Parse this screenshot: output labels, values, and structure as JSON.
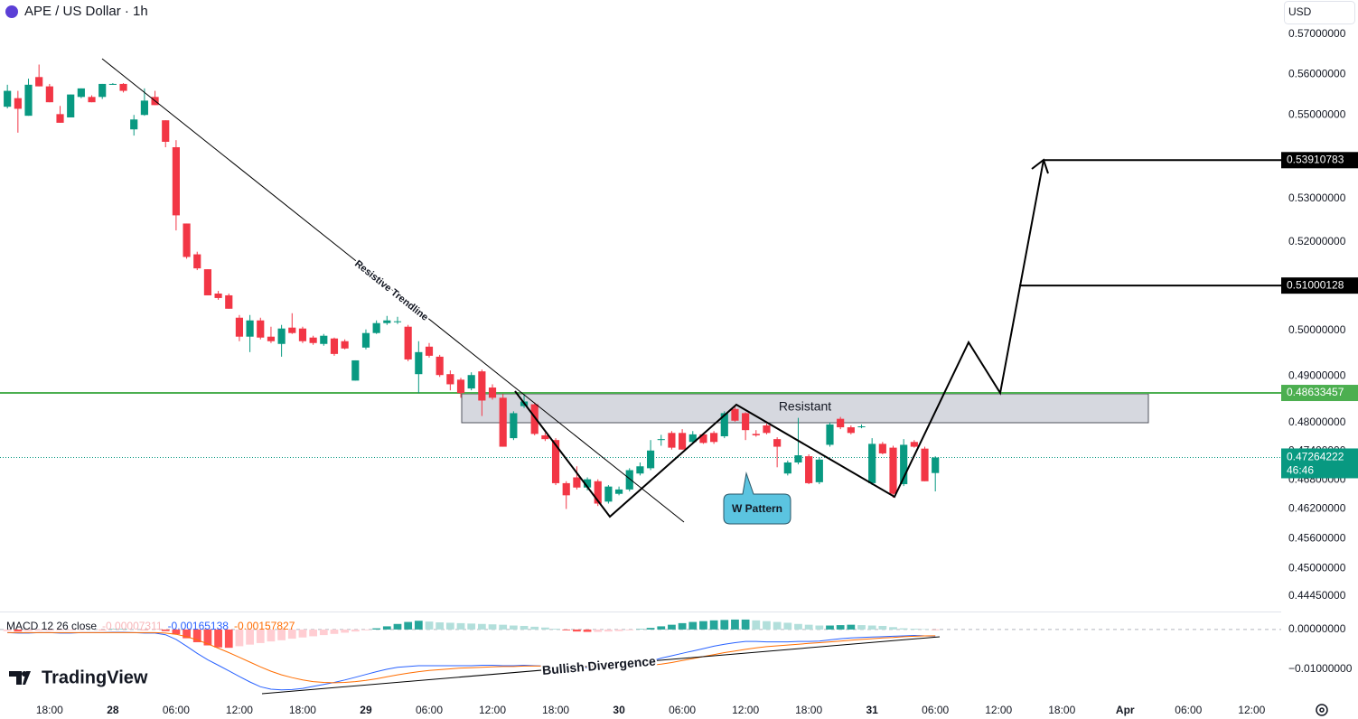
{
  "header": {
    "title": "APE / US Dollar · 1h",
    "currency": "USD",
    "brand": "TradingView"
  },
  "chart_data": [
    {
      "type": "candlestick",
      "log_scale": true,
      "grid": false,
      "up_color": "#089981",
      "down_color": "#f23645",
      "x": [
        -4,
        -3,
        -2,
        -1,
        0,
        1,
        2,
        3,
        4,
        5,
        6,
        7,
        8,
        9,
        10,
        11,
        12,
        13,
        14,
        15,
        16,
        17,
        18,
        19,
        20,
        21,
        22,
        23,
        24,
        25,
        26,
        27,
        28,
        29,
        30,
        31,
        32,
        33,
        34,
        35,
        36,
        37,
        38,
        39,
        40,
        41,
        42,
        43,
        44,
        45,
        46,
        47,
        48,
        49,
        50,
        51,
        52,
        53,
        54,
        55,
        56,
        57,
        58,
        59,
        60,
        61,
        62,
        63,
        64,
        65,
        66,
        67,
        68,
        69,
        70,
        71,
        72,
        73,
        74,
        75,
        76,
        77,
        78,
        79,
        80,
        81,
        82,
        83,
        84
      ],
      "ohlc": [
        [
          0.552,
          0.5574,
          0.5516,
          0.5559
        ],
        [
          0.5541,
          0.5559,
          0.5457,
          0.5515
        ],
        [
          0.5498,
          0.5589,
          0.5498,
          0.5574
        ],
        [
          0.5593,
          0.5624,
          0.557,
          0.557
        ],
        [
          0.557,
          0.5576,
          0.5531,
          0.5531
        ],
        [
          0.5502,
          0.5522,
          0.5481,
          0.5481
        ],
        [
          0.5494,
          0.555,
          0.5494,
          0.555
        ],
        [
          0.5544,
          0.5565,
          0.5541,
          0.5565
        ],
        [
          0.5544,
          0.5548,
          0.5531,
          0.5531
        ],
        [
          0.5544,
          0.5576,
          0.5539,
          0.5576
        ],
        [
          0.5576,
          0.5578,
          0.5574,
          0.5576
        ],
        [
          0.5576,
          0.5578,
          0.5555,
          0.5559
        ],
        [
          0.5465,
          0.55,
          0.545,
          0.5489
        ],
        [
          0.55,
          0.5565,
          0.5498,
          0.5535
        ],
        [
          0.5544,
          0.5559,
          0.5524,
          0.5524
        ],
        [
          0.5487,
          0.5487,
          0.5422,
          0.5435
        ],
        [
          0.5422,
          0.5439,
          0.5226,
          0.5261
        ],
        [
          0.5242,
          0.5242,
          0.5161,
          0.5165
        ],
        [
          0.5171,
          0.5177,
          0.5135,
          0.5139
        ],
        [
          0.5137,
          0.5137,
          0.5078,
          0.5078
        ],
        [
          0.5082,
          0.5088,
          0.5068,
          0.5072
        ],
        [
          0.5078,
          0.5082,
          0.5048,
          0.5048
        ],
        [
          0.5028,
          0.5034,
          0.4976,
          0.4986
        ],
        [
          0.4986,
          0.5034,
          0.4952,
          0.5022
        ],
        [
          0.5022,
          0.5028,
          0.498,
          0.4984
        ],
        [
          0.4986,
          0.5008,
          0.4972,
          0.4976
        ],
        [
          0.497,
          0.5012,
          0.4942,
          0.5004
        ],
        [
          0.5006,
          0.5038,
          0.4992,
          0.4994
        ],
        [
          0.5004,
          0.5008,
          0.4972,
          0.4976
        ],
        [
          0.4984,
          0.4988,
          0.4968,
          0.4972
        ],
        [
          0.497,
          0.4992,
          0.4966,
          0.4988
        ],
        [
          0.4982,
          0.4984,
          0.4944,
          0.4948
        ],
        [
          0.4976,
          0.498,
          0.4958,
          0.496
        ],
        [
          0.489,
          0.4934,
          0.489,
          0.4934
        ],
        [
          0.4962,
          0.5002,
          0.4958,
          0.4994
        ],
        [
          0.4994,
          0.5022,
          0.4992,
          0.5016
        ],
        [
          0.5016,
          0.5032,
          0.5012,
          0.5022
        ],
        [
          0.502,
          0.503,
          0.5014,
          0.502
        ],
        [
          0.5008,
          0.5012,
          0.4932,
          0.4936
        ],
        [
          0.4904,
          0.4976,
          0.4863,
          0.4952
        ],
        [
          0.4964,
          0.4972,
          0.494,
          0.4944
        ],
        [
          0.4942,
          0.4946,
          0.4898,
          0.4902
        ],
        [
          0.4904,
          0.4912,
          0.4869,
          0.4882
        ],
        [
          0.4892,
          0.4896,
          0.4853,
          0.4863
        ],
        [
          0.4873,
          0.4908,
          0.4869,
          0.4902
        ],
        [
          0.491,
          0.4914,
          0.4814,
          0.4847
        ],
        [
          0.4875,
          0.4882,
          0.4849,
          0.4853
        ],
        [
          0.4853,
          0.4861,
          0.4749,
          0.4749
        ],
        [
          0.4767,
          0.4824,
          0.4763,
          0.482
        ],
        [
          0.4835,
          0.4859,
          0.4831,
          0.4845
        ],
        [
          0.4839,
          0.4843,
          0.4773,
          0.4776
        ],
        [
          0.4773,
          0.4778,
          0.4761,
          0.4765
        ],
        [
          0.4763,
          0.4767,
          0.4669,
          0.4673
        ],
        [
          0.4673,
          0.4677,
          0.462,
          0.4648
        ],
        [
          0.4685,
          0.4708,
          0.466,
          0.4664
        ],
        [
          0.4664,
          0.4685,
          0.4658,
          0.4681
        ],
        [
          0.4677,
          0.4681,
          0.4626,
          0.4631
        ],
        [
          0.4635,
          0.4669,
          0.4631,
          0.4666
        ],
        [
          0.4651,
          0.4666,
          0.4648,
          0.466
        ],
        [
          0.466,
          0.4704,
          0.4656,
          0.47
        ],
        [
          0.4693,
          0.4716,
          0.4689,
          0.4708
        ],
        [
          0.4704,
          0.4763,
          0.47,
          0.4741
        ],
        [
          0.4763,
          0.4774,
          0.4751,
          0.4765
        ],
        [
          0.4778,
          0.4782,
          0.4743,
          0.4747
        ],
        [
          0.4778,
          0.4786,
          0.4743,
          0.4743
        ],
        [
          0.4759,
          0.4782,
          0.4755,
          0.4775
        ],
        [
          0.4775,
          0.4778,
          0.4755,
          0.4757
        ],
        [
          0.4778,
          0.4782,
          0.4755,
          0.4759
        ],
        [
          0.4771,
          0.4824,
          0.4767,
          0.482
        ],
        [
          0.4829,
          0.4833,
          0.4802,
          0.4804
        ],
        [
          0.482,
          0.4822,
          0.4763,
          0.4784
        ],
        [
          0.4776,
          0.4784,
          0.477,
          0.4773
        ],
        [
          0.4794,
          0.4798,
          0.4775,
          0.4778
        ],
        [
          0.4765,
          0.4769,
          0.4706,
          0.4749
        ],
        [
          0.4693,
          0.472,
          0.4689,
          0.4716
        ],
        [
          0.4716,
          0.481,
          0.4712,
          0.4731
        ],
        [
          0.4729,
          0.4733,
          0.4671,
          0.4673
        ],
        [
          0.4675,
          0.4727,
          0.4671,
          0.4722
        ],
        [
          0.4753,
          0.48,
          0.4749,
          0.4796
        ],
        [
          0.4808,
          0.4812,
          0.4786,
          0.479
        ],
        [
          0.479,
          0.4794,
          0.4775,
          0.4778
        ],
        [
          0.4792,
          0.4796,
          0.4788,
          0.4792
        ],
        [
          0.4673,
          0.4767,
          0.4669,
          0.4755
        ],
        [
          0.4755,
          0.4759,
          0.4733,
          0.4735
        ],
        [
          0.4747,
          0.4751,
          0.4643,
          0.4651
        ],
        [
          0.4671,
          0.4765,
          0.4667,
          0.4753
        ],
        [
          0.4759,
          0.4763,
          0.4747,
          0.4749
        ],
        [
          0.4745,
          0.4749,
          0.4677,
          0.4677
        ],
        [
          0.4694,
          0.4729,
          0.4656,
          0.47264222
        ]
      ],
      "xlim": [
        -4.7,
        116.8
      ],
      "xticks": [
        {
          "value": 0,
          "label": "18:00"
        },
        {
          "value": 6,
          "label": "28"
        },
        {
          "value": 12,
          "label": "06:00"
        },
        {
          "value": 18,
          "label": "12:00"
        },
        {
          "value": 24,
          "label": "18:00"
        },
        {
          "value": 30,
          "label": "29"
        },
        {
          "value": 36,
          "label": "06:00"
        },
        {
          "value": 42,
          "label": "12:00"
        },
        {
          "value": 48,
          "label": "18:00"
        },
        {
          "value": 54,
          "label": "30"
        },
        {
          "value": 60,
          "label": "06:00"
        },
        {
          "value": 66,
          "label": "12:00"
        },
        {
          "value": 72,
          "label": "18:00"
        },
        {
          "value": 78,
          "label": "31"
        },
        {
          "value": 84,
          "label": "06:00"
        },
        {
          "value": 90,
          "label": "12:00"
        },
        {
          "value": 96,
          "label": "18:00"
        },
        {
          "value": 102,
          "label": "Apr"
        },
        {
          "value": 108,
          "label": "06:00"
        },
        {
          "value": 114,
          "label": "12:00"
        }
      ],
      "ylim": [
        0.4415,
        0.5787
      ],
      "yticks": [
        {
          "value": 0.57,
          "label": "0.57000000"
        },
        {
          "value": 0.56,
          "label": "0.56000000"
        },
        {
          "value": 0.55,
          "label": "0.55000000"
        },
        {
          "value": 0.53,
          "label": "0.53000000"
        },
        {
          "value": 0.52,
          "label": "0.52000000"
        },
        {
          "value": 0.5,
          "label": "0.50000000"
        },
        {
          "value": 0.49,
          "label": "0.49000000"
        },
        {
          "value": 0.48,
          "label": "0.48000000"
        },
        {
          "value": 0.474,
          "label": "0.47400000"
        },
        {
          "value": 0.468,
          "label": "0.46800000"
        },
        {
          "value": 0.462,
          "label": "0.46200000"
        },
        {
          "value": 0.456,
          "label": "0.45600000"
        },
        {
          "value": 0.45,
          "label": "0.45000000"
        },
        {
          "value": 0.4445,
          "label": "0.44450000"
        }
      ],
      "price_lines": [
        {
          "value": 0.53910783,
          "color": "#000000"
        },
        {
          "value": 0.51000128,
          "color": "#000000"
        },
        {
          "value": 0.48633457,
          "color": "#4caf50"
        }
      ],
      "countdown": "46:46",
      "annotations": [
        "Resistive Trendline",
        "Resistant",
        "W Pattern"
      ]
    },
    {
      "type": "macd",
      "title": "MACD 12 26 close",
      "histogram": [
        -0.0004,
        -0.0005,
        -0.0004,
        -0.0003,
        -0.0003,
        -0.0002,
        -0.0002,
        -0.0001,
        0,
        -0.0001,
        0.0001,
        0.0001,
        0,
        -0.0001,
        0,
        -0.0004,
        -0.0012,
        -0.0022,
        -0.0032,
        -0.004,
        -0.0045,
        -0.0046,
        -0.0042,
        -0.0038,
        -0.0034,
        -0.003,
        -0.0027,
        -0.0023,
        -0.002,
        -0.0017,
        -0.0014,
        -0.0011,
        -0.0008,
        -0.0005,
        -0.0002,
        0.0003,
        0.0008,
        0.0014,
        0.0019,
        0.0022,
        0.002,
        0.0018,
        0.0017,
        0.0016,
        0.0015,
        0.0014,
        0.0013,
        0.0012,
        0.001,
        0.0009,
        0.0007,
        0.0005,
        0.0002,
        -0.0002,
        -0.0005,
        -0.0006,
        -0.0006,
        -0.0005,
        -0.0004,
        -0.0002,
        0.0001,
        0.0004,
        0.0008,
        0.0012,
        0.0016,
        0.0019,
        0.0021,
        0.0023,
        0.0024,
        0.0025,
        0.0025,
        0.0023,
        0.0021,
        0.0019,
        0.0017,
        0.0014,
        0.0012,
        0.001,
        0.001,
        0.0011,
        0.0012,
        0.0011,
        0.001,
        0.0009,
        0.0006,
        0.0003,
        0.0002,
        0.0001,
        -7.311e-05
      ],
      "macd": [
        -0.0008,
        -0.0009,
        -0.0009,
        -0.0008,
        -0.0008,
        -0.0009,
        -0.0009,
        -0.0008,
        -0.0008,
        -0.0008,
        -0.0007,
        -0.0007,
        -0.0008,
        -0.0009,
        -0.0009,
        -0.0013,
        -0.0025,
        -0.0042,
        -0.006,
        -0.0076,
        -0.009,
        -0.0104,
        -0.0118,
        -0.0132,
        -0.0144,
        -0.015,
        -0.0152,
        -0.0151,
        -0.0148,
        -0.0143,
        -0.0138,
        -0.0133,
        -0.0127,
        -0.012,
        -0.0113,
        -0.0106,
        -0.01,
        -0.0095,
        -0.0093,
        -0.0091,
        -0.0091,
        -0.0091,
        -0.0091,
        -0.0091,
        -0.0091,
        -0.009,
        -0.009,
        -0.0091,
        -0.0091,
        -0.009,
        -0.0091,
        -0.0092,
        -0.0095,
        -0.0098,
        -0.0097,
        -0.0096,
        -0.0097,
        -0.0097,
        -0.0094,
        -0.0091,
        -0.0087,
        -0.008,
        -0.0072,
        -0.0066,
        -0.006,
        -0.0054,
        -0.0048,
        -0.0042,
        -0.0037,
        -0.0033,
        -0.003,
        -0.003,
        -0.0031,
        -0.0031,
        -0.0031,
        -0.003,
        -0.003,
        -0.0029,
        -0.0026,
        -0.0023,
        -0.0021,
        -0.002,
        -0.0019,
        -0.0018,
        -0.0017,
        -0.0016,
        -0.0015,
        -0.0016,
        -0.00165138
      ],
      "signal": [
        -0.0008,
        -0.0008,
        -0.0008,
        -0.0008,
        -0.0008,
        -0.0008,
        -0.0008,
        -0.0008,
        -0.0008,
        -0.0008,
        -0.0008,
        -0.0008,
        -0.0008,
        -0.0008,
        -0.0008,
        -0.0009,
        -0.0012,
        -0.0018,
        -0.0026,
        -0.0036,
        -0.0047,
        -0.0058,
        -0.007,
        -0.0082,
        -0.0094,
        -0.0105,
        -0.0114,
        -0.0121,
        -0.0127,
        -0.0131,
        -0.0133,
        -0.0134,
        -0.0133,
        -0.0131,
        -0.0128,
        -0.0124,
        -0.0119,
        -0.0114,
        -0.011,
        -0.0106,
        -0.0103,
        -0.0101,
        -0.0099,
        -0.0097,
        -0.0096,
        -0.0095,
        -0.0094,
        -0.0093,
        -0.0093,
        -0.0092,
        -0.0092,
        -0.0092,
        -0.0093,
        -0.0093,
        -0.0094,
        -0.0094,
        -0.0094,
        -0.0095,
        -0.0095,
        -0.0094,
        -0.0092,
        -0.009,
        -0.0087,
        -0.0083,
        -0.0078,
        -0.0073,
        -0.0068,
        -0.0063,
        -0.0058,
        -0.0054,
        -0.005,
        -0.0046,
        -0.0043,
        -0.0041,
        -0.0039,
        -0.0037,
        -0.0035,
        -0.0033,
        -0.0031,
        -0.0029,
        -0.0027,
        -0.0025,
        -0.0023,
        -0.0021,
        -0.002,
        -0.0018,
        -0.0017,
        -0.0016,
        -0.00157827
      ],
      "macd_color": "#2962ff",
      "signal_color": "#ff6d00",
      "hist_colors": [
        "#26a69a",
        "#b2dfdb",
        "#ff5252",
        "#ffcdd2"
      ],
      "ylim": [
        -0.0166,
        0.0043
      ],
      "yticks": [
        {
          "value": 0,
          "label": "0.00000000"
        },
        {
          "value": -0.01,
          "label": "−0.01000000"
        }
      ],
      "annotations": [
        "Bullish Divergence"
      ]
    }
  ]
}
